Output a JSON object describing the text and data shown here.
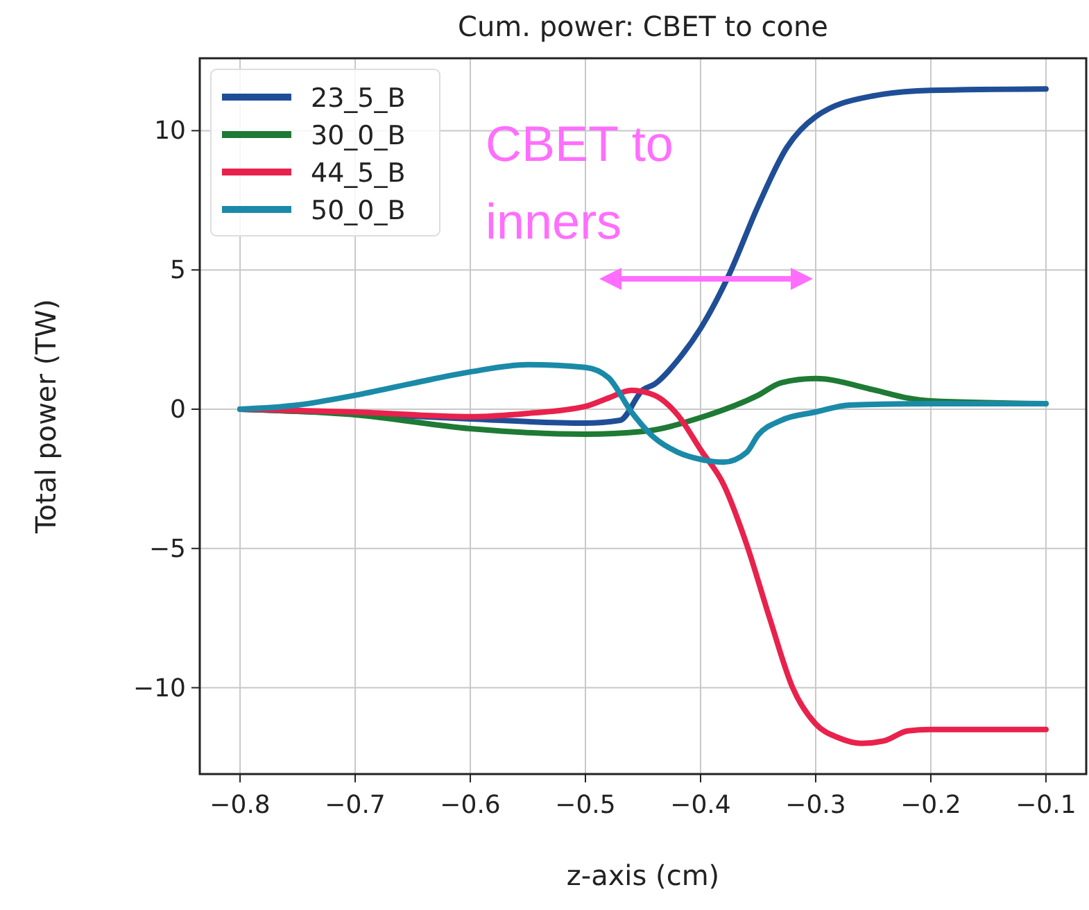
{
  "chart_data": {
    "type": "line",
    "title": "Cum. power: CBET to cone",
    "xlabel": "z-axis (cm)",
    "ylabel": "Total power (TW)",
    "annotations": [
      "CBET to inners"
    ],
    "xlim": [
      -0.835,
      -0.065
    ],
    "ylim": [
      -13.1,
      12.6
    ],
    "xticks": [
      -0.8,
      -0.7,
      -0.6,
      -0.5,
      -0.4,
      -0.3,
      -0.2,
      -0.1
    ],
    "yticks": [
      -10,
      -5,
      0,
      5,
      10
    ],
    "grid": true,
    "legend": "top left",
    "line_style": "solid",
    "marker": "none",
    "series": [
      {
        "name": "23_5_B",
        "color": "#1f4e96",
        "x": [
          -0.8,
          -0.7,
          -0.6,
          -0.5,
          -0.47,
          -0.45,
          -0.44,
          -0.42,
          -0.4,
          -0.375,
          -0.35,
          -0.325,
          -0.3,
          -0.25,
          -0.2,
          -0.1
        ],
        "values": [
          0,
          -0.15,
          -0.35,
          -0.5,
          -0.4,
          0.7,
          0.9,
          1.75,
          2.9,
          4.85,
          7.3,
          9.4,
          10.5,
          11.25,
          11.45,
          11.5
        ]
      },
      {
        "name": "30_0_B",
        "color": "#1e7a34",
        "x": [
          -0.8,
          -0.7,
          -0.6,
          -0.5,
          -0.45,
          -0.4,
          -0.35,
          -0.33,
          -0.3,
          -0.25,
          -0.22,
          -0.2,
          -0.1
        ],
        "values": [
          0,
          -0.2,
          -0.7,
          -0.9,
          -0.8,
          -0.3,
          0.5,
          0.95,
          1.1,
          0.7,
          0.4,
          0.3,
          0.2
        ]
      },
      {
        "name": "44_5_B",
        "color": "#e8224c",
        "x": [
          -0.8,
          -0.7,
          -0.6,
          -0.55,
          -0.5,
          -0.48,
          -0.46,
          -0.44,
          -0.42,
          -0.4,
          -0.38,
          -0.36,
          -0.34,
          -0.32,
          -0.3,
          -0.28,
          -0.26,
          -0.24,
          -0.22,
          -0.2,
          -0.1
        ],
        "values": [
          0,
          -0.1,
          -0.27,
          -0.15,
          0.1,
          0.4,
          0.68,
          0.5,
          -0.2,
          -1.45,
          -2.7,
          -4.85,
          -7.5,
          -10,
          -11.3,
          -11.8,
          -12,
          -11.9,
          -11.55,
          -11.5,
          -11.5
        ]
      },
      {
        "name": "50_0_B",
        "color": "#1a8aa8",
        "x": [
          -0.8,
          -0.75,
          -0.7,
          -0.65,
          -0.6,
          -0.55,
          -0.5,
          -0.48,
          -0.46,
          -0.44,
          -0.42,
          -0.4,
          -0.38,
          -0.36,
          -0.35,
          -0.33,
          -0.3,
          -0.27,
          -0.2,
          -0.1
        ],
        "values": [
          0,
          0.15,
          0.5,
          0.93,
          1.34,
          1.6,
          1.5,
          1.13,
          -0.1,
          -1.03,
          -1.54,
          -1.8,
          -1.9,
          -1.55,
          -0.93,
          -0.4,
          -0.1,
          0.15,
          0.2,
          0.2
        ]
      }
    ]
  }
}
